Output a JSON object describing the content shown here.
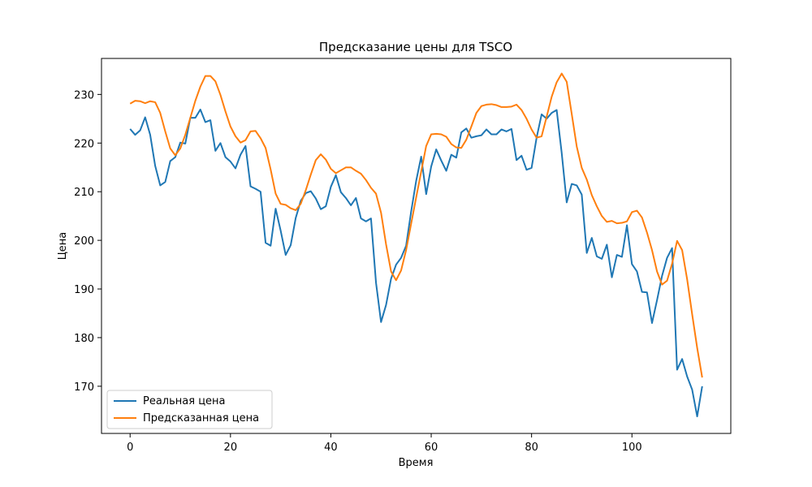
{
  "chart_data": {
    "type": "line",
    "title": "Предсказание цены для TSCO",
    "xlabel": "Время",
    "ylabel": "Цена",
    "xlim": [
      -5.7,
      119.7
    ],
    "ylim": [
      160.3,
      237.4
    ],
    "xticks": [
      0,
      20,
      40,
      60,
      80,
      100
    ],
    "yticks": [
      170,
      180,
      190,
      200,
      210,
      220,
      230
    ],
    "grid": false,
    "legend_position": "lower-left",
    "series": [
      {
        "name": "Реальная цена",
        "color": "#1f77b4",
        "values": [
          222.9,
          221.7,
          222.6,
          225.3,
          221.7,
          215.3,
          211.3,
          212.0,
          216.3,
          217.1,
          220.1,
          219.9,
          225.2,
          225.2,
          226.9,
          224.3,
          224.7,
          218.4,
          220.0,
          217.1,
          216.2,
          214.8,
          217.6,
          219.4,
          211.1,
          210.6,
          210.0,
          199.5,
          198.9,
          206.5,
          202.0,
          197.0,
          199.0,
          204.6,
          208.1,
          209.7,
          210.1,
          208.6,
          206.4,
          207.0,
          211.0,
          213.4,
          209.9,
          208.7,
          207.2,
          208.7,
          204.5,
          203.9,
          204.5,
          191.3,
          183.2,
          186.7,
          192.1,
          195.0,
          196.4,
          198.9,
          205.9,
          212.2,
          217.2,
          209.5,
          215.2,
          218.7,
          216.4,
          214.3,
          217.6,
          217.0,
          222.2,
          223.0,
          221.1,
          221.4,
          221.6,
          222.8,
          221.8,
          221.8,
          222.8,
          222.4,
          222.9,
          216.5,
          217.4,
          214.5,
          214.9,
          221.1,
          225.9,
          225.0,
          226.2,
          226.8,
          218.0,
          207.8,
          211.6,
          211.3,
          209.4,
          197.4,
          200.5,
          196.7,
          196.2,
          199.1,
          192.4,
          197.0,
          196.6,
          203.1,
          195.1,
          193.6,
          189.4,
          189.3,
          183.0,
          187.7,
          192.7,
          196.4,
          198.4,
          173.4,
          175.6,
          172.0,
          169.3,
          163.8,
          170.0
        ]
      },
      {
        "name": "Предсказанная цена",
        "color": "#ff7f0e",
        "values": [
          228.1,
          228.7,
          228.6,
          228.2,
          228.6,
          228.4,
          226.2,
          222.4,
          218.9,
          217.5,
          218.9,
          221.7,
          225.2,
          228.7,
          231.6,
          233.8,
          233.8,
          232.7,
          229.9,
          226.5,
          223.4,
          221.4,
          220.1,
          220.6,
          222.4,
          222.5,
          221.0,
          219.0,
          214.6,
          209.6,
          207.5,
          207.3,
          206.6,
          206.2,
          207.5,
          210.3,
          213.5,
          216.5,
          217.7,
          216.6,
          214.7,
          213.8,
          214.4,
          215.0,
          215.0,
          214.3,
          213.7,
          212.4,
          210.8,
          209.6,
          205.7,
          199.2,
          193.6,
          191.8,
          193.8,
          198.0,
          203.4,
          208.8,
          214.1,
          219.4,
          221.8,
          221.9,
          221.8,
          221.3,
          219.8,
          219.1,
          219.0,
          220.7,
          223.4,
          226.2,
          227.6,
          227.9,
          228.0,
          227.8,
          227.4,
          227.4,
          227.5,
          227.9,
          226.8,
          225.0,
          222.8,
          221.1,
          221.4,
          225.4,
          229.5,
          232.5,
          234.3,
          232.6,
          226.0,
          219.3,
          214.9,
          212.5,
          209.3,
          207.0,
          205.0,
          203.8,
          204.0,
          203.5,
          203.6,
          203.9,
          205.8,
          206.1,
          204.7,
          201.6,
          198.0,
          193.6,
          190.9,
          191.7,
          195.2,
          199.9,
          198.0,
          192.0,
          184.8,
          177.9,
          171.8
        ]
      }
    ]
  }
}
